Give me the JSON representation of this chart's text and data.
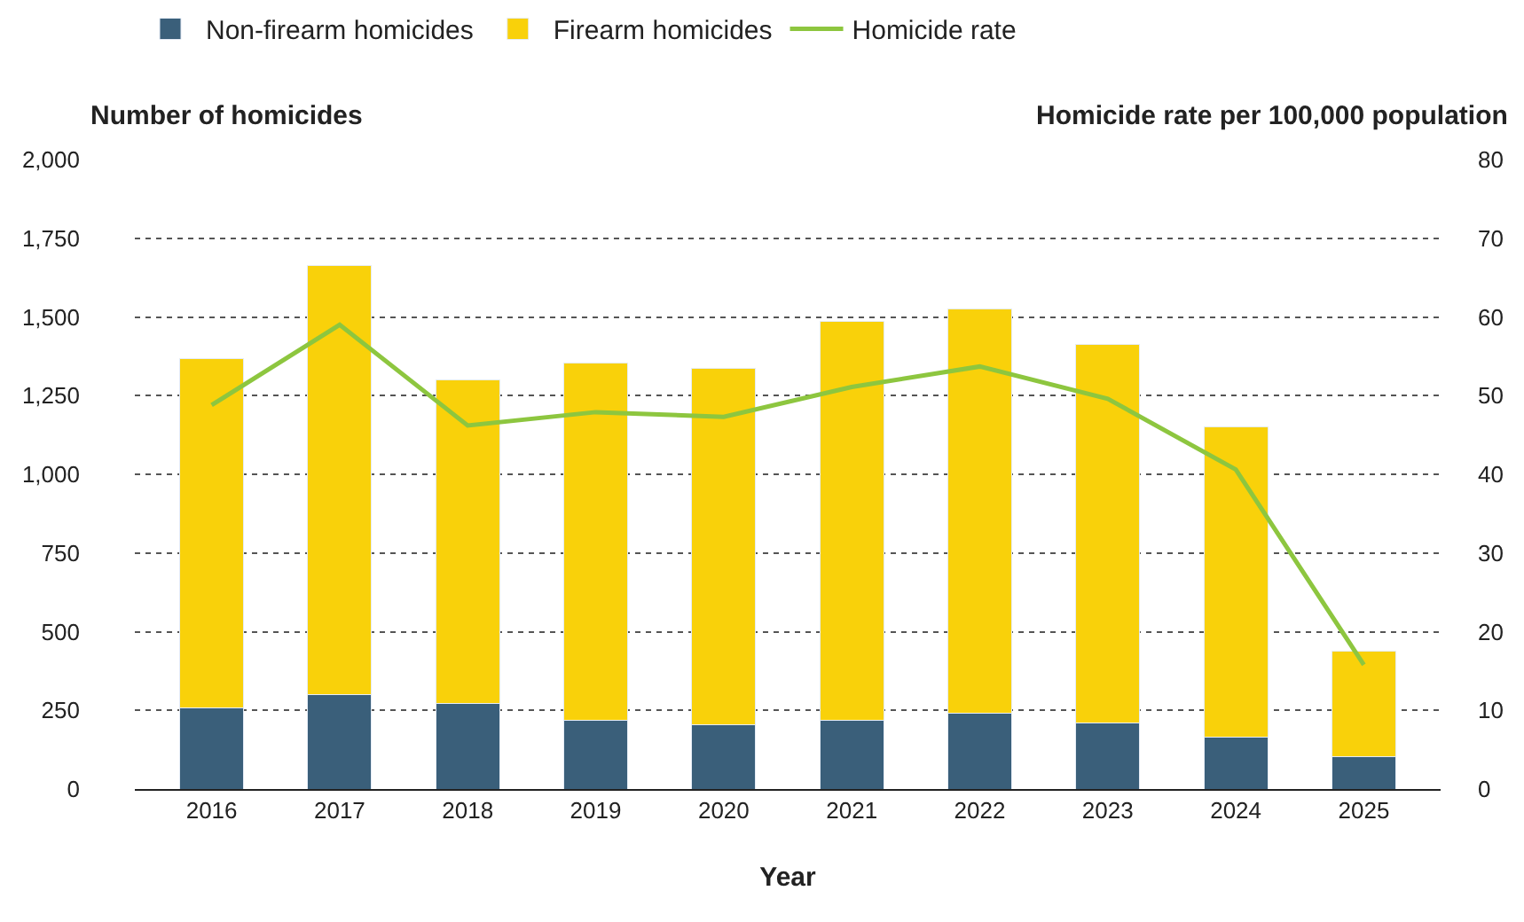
{
  "chart_data": {
    "type": "bar",
    "stacked": true,
    "categories": [
      "2016",
      "2017",
      "2018",
      "2019",
      "2020",
      "2021",
      "2022",
      "2023",
      "2024",
      "2025"
    ],
    "series": [
      {
        "name": "Non-firearm homicides",
        "color": "#3a5f7a",
        "values": [
          257,
          299,
          273,
          219,
          203,
          219,
          241,
          209,
          166,
          102
        ]
      },
      {
        "name": "Firearm homicides",
        "color": "#f9d10a",
        "values": [
          1112,
          1364,
          1026,
          1134,
          1134,
          1268,
          1283,
          1203,
          984,
          337
        ]
      },
      {
        "name": "Homicide rate",
        "type": "line",
        "axis": "y2",
        "color": "#8dc63f",
        "marker": "none",
        "values": [
          48.8,
          59.0,
          46.2,
          47.9,
          47.3,
          51.1,
          53.7,
          49.6,
          40.6,
          15.8
        ]
      }
    ],
    "xlabel": "Year",
    "ylabel": "Number of homicides",
    "y2label": "Homicide rate per 100,000 population",
    "ylim": [
      0,
      2000
    ],
    "yticks": [
      0,
      250,
      500,
      750,
      {
        "value": 1000,
        "label": "1,000"
      },
      {
        "value": 1250,
        "label": "1,250"
      },
      {
        "value": 1500,
        "label": "1,500"
      },
      {
        "value": 1750,
        "label": "1,750"
      },
      {
        "value": 2000,
        "label": "2,000"
      }
    ],
    "y2lim": [
      0,
      80
    ],
    "y2ticks": [
      0,
      10,
      20,
      30,
      40,
      50,
      60,
      70,
      80
    ],
    "grid": "y",
    "legend": "top left",
    "line_style": "solid"
  }
}
